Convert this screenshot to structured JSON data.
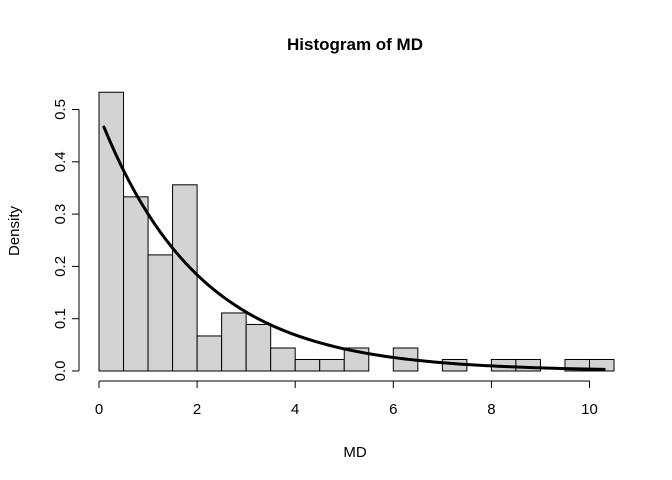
{
  "chart_data": {
    "type": "bar",
    "title": "Histogram of MD",
    "xlabel": "MD",
    "ylabel": "Density",
    "xlim": [
      0,
      10.5
    ],
    "ylim": [
      0,
      0.53
    ],
    "bin_width": 0.5,
    "bins": [
      {
        "start": 0.0,
        "end": 0.5,
        "value": 0.533
      },
      {
        "start": 0.5,
        "end": 1.0,
        "value": 0.333
      },
      {
        "start": 1.0,
        "end": 1.5,
        "value": 0.222
      },
      {
        "start": 1.5,
        "end": 2.0,
        "value": 0.356
      },
      {
        "start": 2.0,
        "end": 2.5,
        "value": 0.067
      },
      {
        "start": 2.5,
        "end": 3.0,
        "value": 0.111
      },
      {
        "start": 3.0,
        "end": 3.5,
        "value": 0.089
      },
      {
        "start": 3.5,
        "end": 4.0,
        "value": 0.044
      },
      {
        "start": 4.0,
        "end": 4.5,
        "value": 0.022
      },
      {
        "start": 4.5,
        "end": 5.0,
        "value": 0.022
      },
      {
        "start": 5.0,
        "end": 5.5,
        "value": 0.044
      },
      {
        "start": 5.5,
        "end": 6.0,
        "value": 0.0
      },
      {
        "start": 6.0,
        "end": 6.5,
        "value": 0.044
      },
      {
        "start": 6.5,
        "end": 7.0,
        "value": 0.0
      },
      {
        "start": 7.0,
        "end": 7.5,
        "value": 0.022
      },
      {
        "start": 7.5,
        "end": 8.0,
        "value": 0.0
      },
      {
        "start": 8.0,
        "end": 8.5,
        "value": 0.022
      },
      {
        "start": 8.5,
        "end": 9.0,
        "value": 0.022
      },
      {
        "start": 9.0,
        "end": 9.5,
        "value": 0.0
      },
      {
        "start": 9.5,
        "end": 10.0,
        "value": 0.022
      },
      {
        "start": 10.0,
        "end": 10.5,
        "value": 0.022
      }
    ],
    "density_curve": {
      "type": "exponential",
      "rate": 0.49,
      "x_range": [
        0.1,
        10.3
      ]
    },
    "x_ticks": [
      0,
      2,
      4,
      6,
      8,
      10
    ],
    "y_ticks": [
      0.0,
      0.1,
      0.2,
      0.3,
      0.4,
      0.5
    ],
    "x_tick_labels": [
      "0",
      "2",
      "4",
      "6",
      "8",
      "10"
    ],
    "y_tick_labels": [
      "0.0",
      "0.1",
      "0.2",
      "0.3",
      "0.4",
      "0.5"
    ],
    "grid": false,
    "colors": {
      "bar_fill": "#d3d3d3",
      "bar_stroke": "#000000",
      "curve": "#000000"
    }
  }
}
